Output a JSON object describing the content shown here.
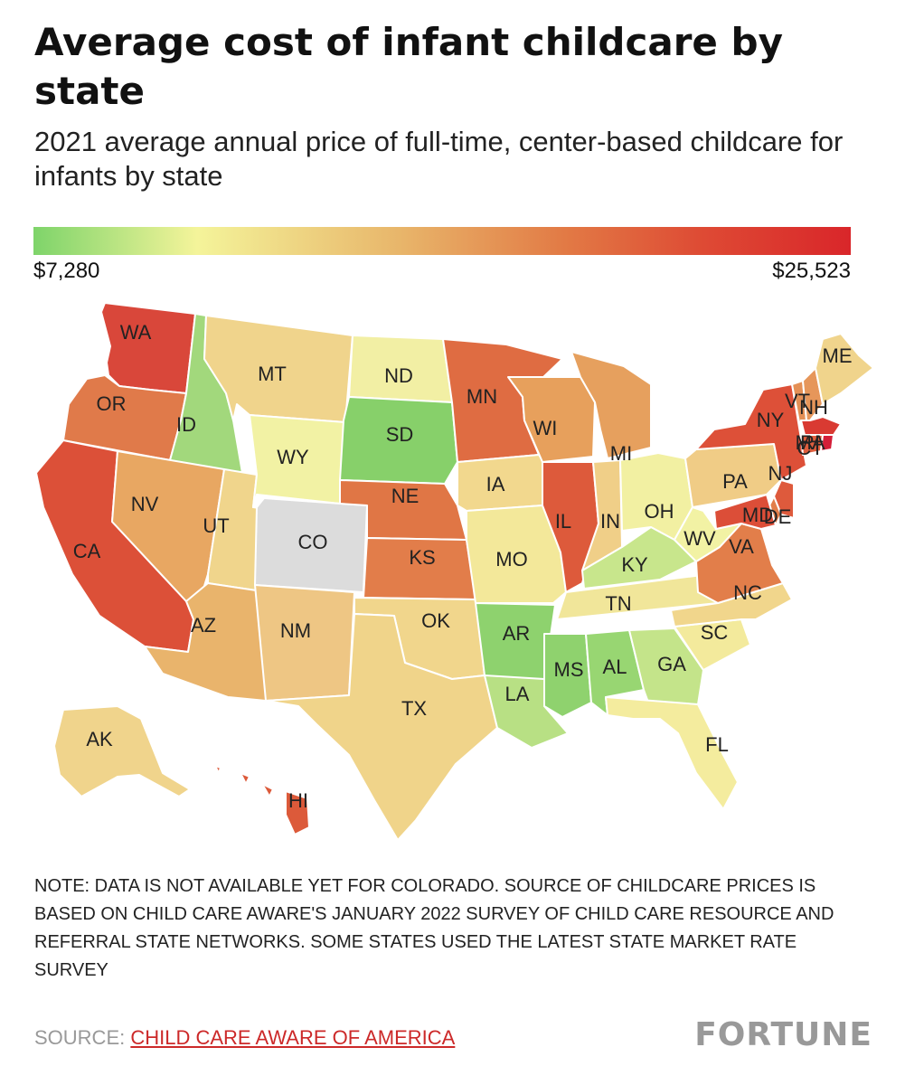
{
  "header": {
    "title": "Average cost of infant childcare by state",
    "subtitle": "2021 average annual price of full-time, center-based childcare for infants by state"
  },
  "legend": {
    "min_label": "$7,280",
    "max_label": "$25,523",
    "min_value": 7280,
    "max_value": 25523,
    "colors": [
      "#7ed46a",
      "#f4f49a",
      "#e8b56a",
      "#e27a45",
      "#de4a34",
      "#d9262a"
    ]
  },
  "map": {
    "states": [
      {
        "code": "WA",
        "color": "#d9473a"
      },
      {
        "code": "OR",
        "color": "#e07a4a"
      },
      {
        "code": "CA",
        "color": "#dc5038"
      },
      {
        "code": "ID",
        "color": "#a2d87c"
      },
      {
        "code": "NV",
        "color": "#e8a762"
      },
      {
        "code": "UT",
        "color": "#f0d58c"
      },
      {
        "code": "AZ",
        "color": "#e9b46c"
      },
      {
        "code": "MT",
        "color": "#f0d48c"
      },
      {
        "code": "WY",
        "color": "#f2f2a4"
      },
      {
        "code": "CO",
        "color": "#dcdcdc"
      },
      {
        "code": "NM",
        "color": "#eec684"
      },
      {
        "code": "ND",
        "color": "#f2efa4"
      },
      {
        "code": "SD",
        "color": "#87d06a"
      },
      {
        "code": "NE",
        "color": "#e07645"
      },
      {
        "code": "KS",
        "color": "#e27d4a"
      },
      {
        "code": "OK",
        "color": "#f1d68c"
      },
      {
        "code": "TX",
        "color": "#f0d48a"
      },
      {
        "code": "MN",
        "color": "#df6c42"
      },
      {
        "code": "IA",
        "color": "#f2d88e"
      },
      {
        "code": "MO",
        "color": "#f3e89a"
      },
      {
        "code": "AR",
        "color": "#8ed26e"
      },
      {
        "code": "LA",
        "color": "#b8e084"
      },
      {
        "code": "WI",
        "color": "#e7a05c"
      },
      {
        "code": "IL",
        "color": "#dd5a3b"
      },
      {
        "code": "MI",
        "color": "#e6a05e"
      },
      {
        "code": "IN",
        "color": "#f0cf88"
      },
      {
        "code": "OH",
        "color": "#f2f0a2"
      },
      {
        "code": "KY",
        "color": "#c8e68c"
      },
      {
        "code": "TN",
        "color": "#f1e69a"
      },
      {
        "code": "MS",
        "color": "#8fd26e"
      },
      {
        "code": "AL",
        "color": "#98d672"
      },
      {
        "code": "GA",
        "color": "#c4e48a"
      },
      {
        "code": "FL",
        "color": "#f4ec9e"
      },
      {
        "code": "SC",
        "color": "#f3ea9c"
      },
      {
        "code": "NC",
        "color": "#f1d68c"
      },
      {
        "code": "VA",
        "color": "#e27e4a"
      },
      {
        "code": "WV",
        "color": "#f2f2a4"
      },
      {
        "code": "PA",
        "color": "#f0cc86"
      },
      {
        "code": "NY",
        "color": "#dd5038"
      },
      {
        "code": "NJ",
        "color": "#de5a3c"
      },
      {
        "code": "DE",
        "color": "#e27e4a"
      },
      {
        "code": "MD",
        "color": "#dc4e38"
      },
      {
        "code": "VT",
        "color": "#e49056"
      },
      {
        "code": "NH",
        "color": "#e6965a"
      },
      {
        "code": "ME",
        "color": "#f0d48c"
      },
      {
        "code": "MA",
        "color": "#d93a32"
      },
      {
        "code": "CT",
        "color": "#de5e3e"
      },
      {
        "code": "RI",
        "color": "#d41e38"
      },
      {
        "code": "AK",
        "color": "#f0d48c"
      },
      {
        "code": "HI",
        "color": "#dc5a3a"
      }
    ]
  },
  "note": "NOTE: DATA IS NOT AVAILABLE YET FOR COLORADO. SOURCE OF CHILDCARE PRICES IS BASED ON CHILD CARE AWARE'S JANUARY 2022 SURVEY OF CHILD CARE RESOURCE AND REFERRAL STATE NETWORKS. SOME STATES USED THE LATEST STATE MARKET RATE SURVEY",
  "footer": {
    "source_prefix": "SOURCE: ",
    "source_link": "CHILD CARE AWARE OF AMERICA",
    "brand": "FORTUNE"
  }
}
